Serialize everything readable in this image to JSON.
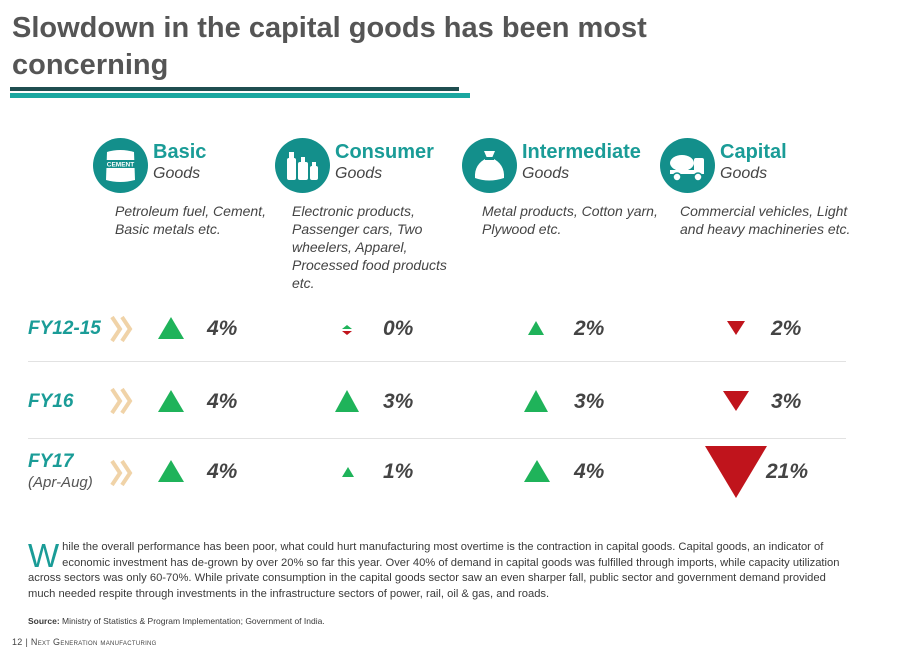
{
  "title": "Slowdown in the capital goods has been most concerning",
  "categories": [
    {
      "name": "Basic",
      "sub": "Goods",
      "desc": "Petroleum fuel, Cement, Basic metals etc.",
      "icon": "cement-bag-icon",
      "icon_text": "CEMENT"
    },
    {
      "name": "Consumer",
      "sub": "Goods",
      "desc": "Electronic products, Passenger cars, Two wheelers, Apparel, Processed food products etc.",
      "icon": "bottles-icon"
    },
    {
      "name": "Intermediate",
      "sub": "Goods",
      "desc": "Metal products, Cotton yarn, Plywood etc.",
      "icon": "sack-icon"
    },
    {
      "name": "Capital",
      "sub": "Goods",
      "desc": "Commercial vehicles, Light and heavy machineries etc.",
      "icon": "cement-truck-icon"
    }
  ],
  "rows": [
    {
      "label": "FY12-15",
      "sublabel": "",
      "cells": [
        {
          "value": "4%",
          "direction": "up"
        },
        {
          "value": "0%",
          "direction": "flat"
        },
        {
          "value": "2%",
          "direction": "up"
        },
        {
          "value": "2%",
          "direction": "down"
        }
      ]
    },
    {
      "label": "FY16",
      "sublabel": "",
      "cells": [
        {
          "value": "4%",
          "direction": "up"
        },
        {
          "value": "3%",
          "direction": "up"
        },
        {
          "value": "3%",
          "direction": "up"
        },
        {
          "value": "3%",
          "direction": "down"
        }
      ]
    },
    {
      "label": "FY17",
      "sublabel": "(Apr-Aug)",
      "cells": [
        {
          "value": "4%",
          "direction": "up"
        },
        {
          "value": "1%",
          "direction": "up"
        },
        {
          "value": "4%",
          "direction": "up"
        },
        {
          "value": "21%",
          "direction": "down"
        }
      ]
    }
  ],
  "paragraph": {
    "dropcap": "W",
    "text": "hile the overall performance has been poor, what could hurt manufacturing most overtime is the contraction in capital goods. Capital goods, an indicator of economic investment has de-grown by over 20% so far this year. Over 40% of demand in capital goods was fulfilled through imports, while capacity utilization across sectors was only 60-70%. While private consumption in the capital goods sector saw an even sharper fall, public sector and government demand provided much needed respite through investments in the infrastructure sectors of power, rail, oil & gas, and roads."
  },
  "source": {
    "label": "Source:",
    "text": "Ministry of Statistics & Program Implementation; Government of India."
  },
  "footer": {
    "page": "12",
    "separator": "|",
    "text": "Next Generation manufacturing"
  },
  "colors": {
    "teal": "#1a9c97",
    "up": "#1fb35a",
    "down": "#c0141c",
    "chevron": "#f0d3a8"
  }
}
